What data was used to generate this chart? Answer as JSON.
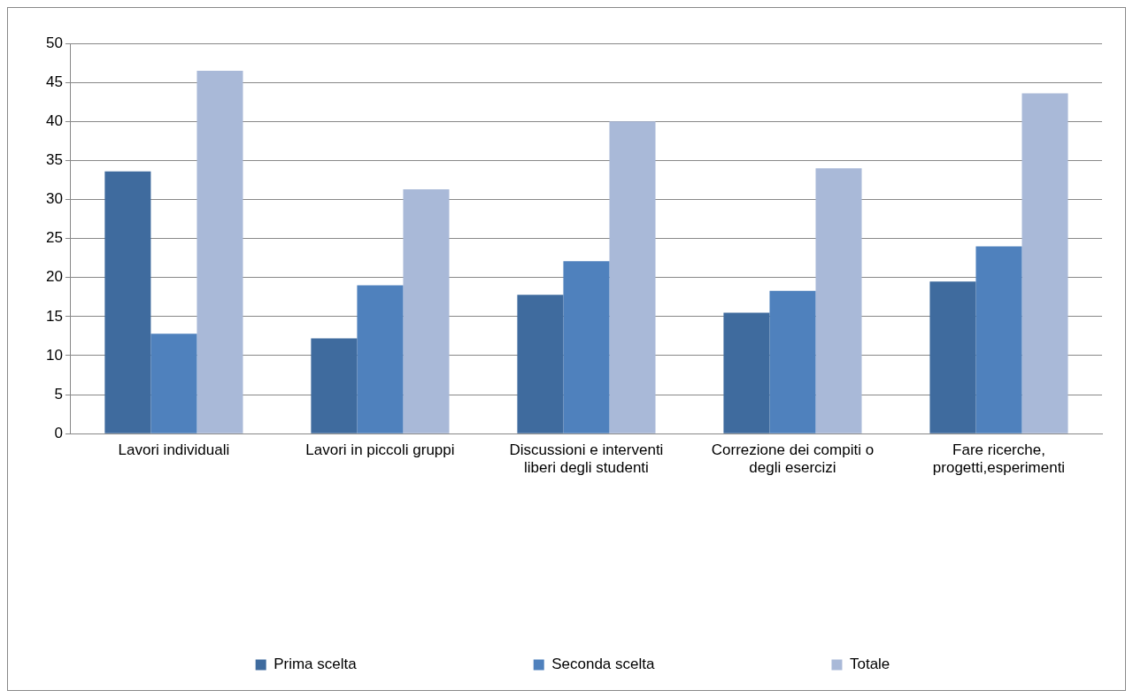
{
  "chart_data": {
    "type": "bar",
    "categories": [
      "Lavori individuali",
      "Lavori in piccoli gruppi",
      "Discussioni e interventi liberi degli studenti",
      "Correzione dei compiti o degli esercizi",
      "Fare ricerche, progetti,esperimenti"
    ],
    "series": [
      {
        "name": "Prima scelta",
        "color": "#3f6b9e",
        "values": [
          33.6,
          12.2,
          17.8,
          15.5,
          19.5
        ]
      },
      {
        "name": "Seconda scelta",
        "color": "#4f81bd",
        "values": [
          12.8,
          19.0,
          22.1,
          18.3,
          24.0
        ]
      },
      {
        "name": "Totale",
        "color": "#a9b9d8",
        "values": [
          46.5,
          31.3,
          40.0,
          34.0,
          43.6
        ]
      }
    ],
    "ylim": [
      0,
      50
    ],
    "yticks": [
      0,
      5,
      10,
      15,
      20,
      25,
      30,
      35,
      40,
      45,
      50
    ],
    "grid": "y",
    "legend": "bottom"
  }
}
